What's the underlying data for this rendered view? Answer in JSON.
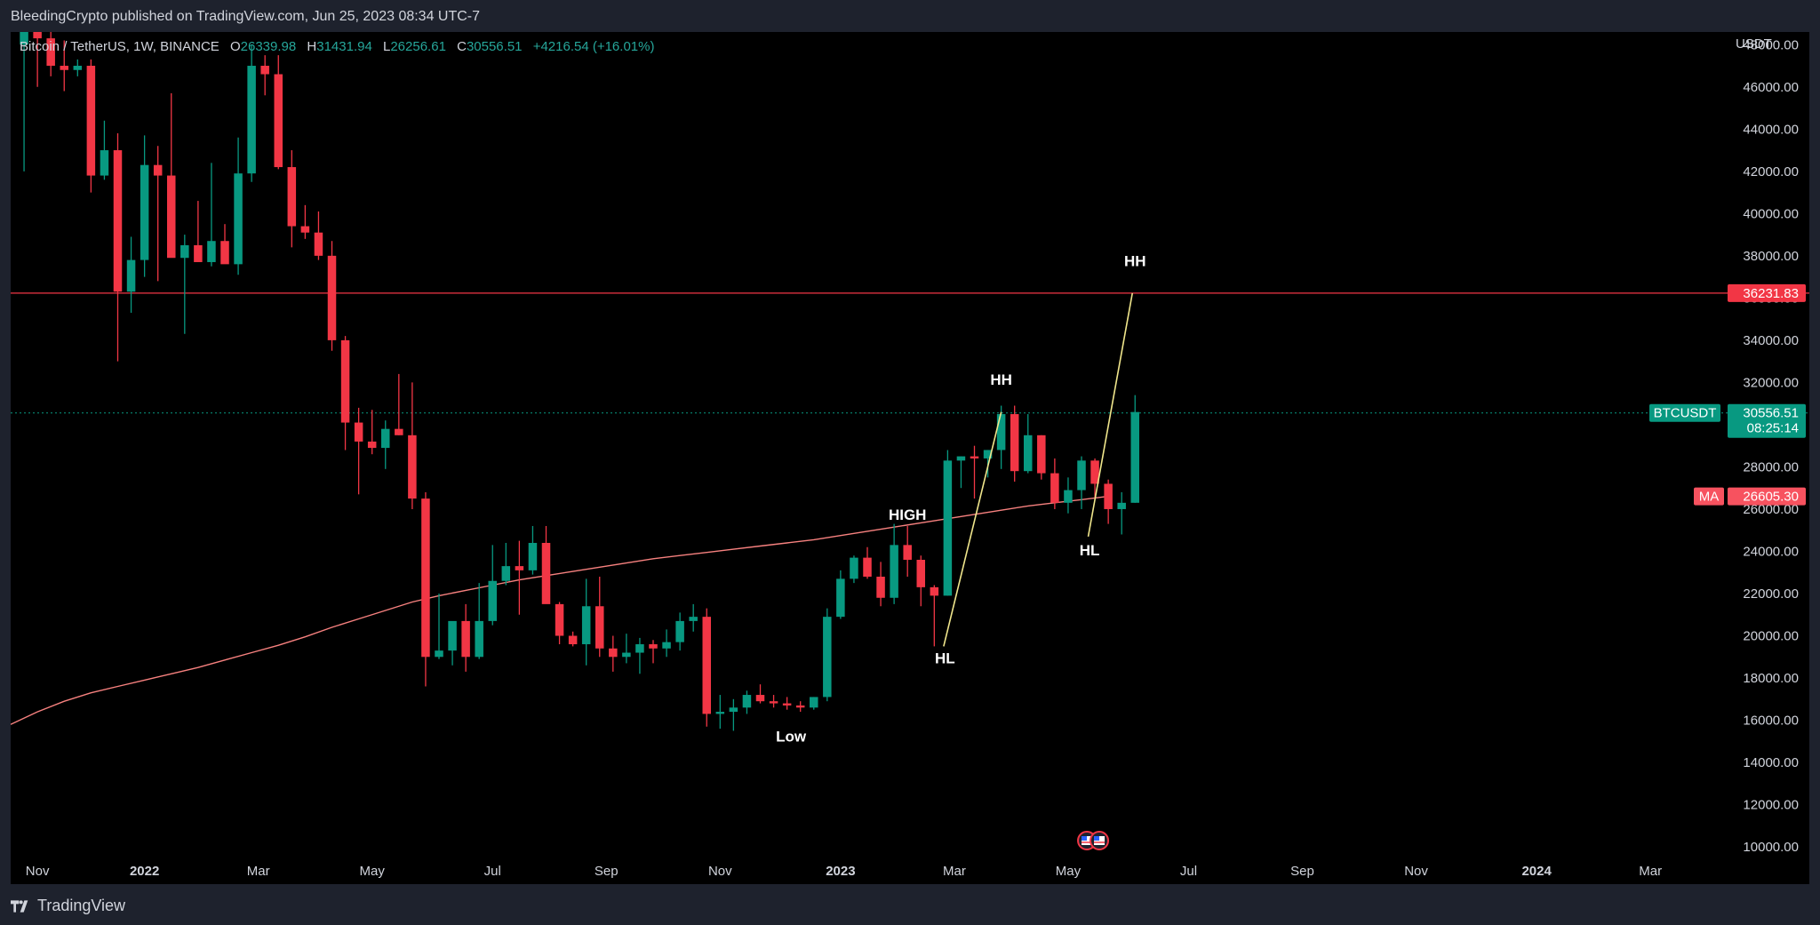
{
  "header": {
    "publisher_text": "BleedingCrypto published on TradingView.com, Jun 25, 2023 08:34 UTC-7"
  },
  "legend": {
    "symbol": "Bitcoin / TetherUS, 1W, BINANCE",
    "open_label": "O",
    "open": "26339.98",
    "high_label": "H",
    "high": "31431.94",
    "low_label": "L",
    "low": "26256.61",
    "close_label": "C",
    "close": "30556.51",
    "change": "+4216.54 (+16.01%)"
  },
  "price_scale": {
    "unit": "USDT",
    "ticks": [
      "10000.00",
      "12000.00",
      "14000.00",
      "16000.00",
      "18000.00",
      "20000.00",
      "22000.00",
      "24000.00",
      "26000.00",
      "28000.00",
      "30000.00",
      "32000.00",
      "34000.00",
      "36000.00",
      "38000.00",
      "40000.00",
      "42000.00",
      "44000.00",
      "46000.00",
      "48000.00"
    ]
  },
  "time_scale": {
    "labels": [
      {
        "text": "Nov",
        "w": -8,
        "bold": false
      },
      {
        "text": "2022",
        "w": 0,
        "bold": true
      },
      {
        "text": "Mar",
        "w": 8.5,
        "bold": false
      },
      {
        "text": "May",
        "w": 17,
        "bold": false
      },
      {
        "text": "Jul",
        "w": 26,
        "bold": false
      },
      {
        "text": "Sep",
        "w": 34.5,
        "bold": false
      },
      {
        "text": "Nov",
        "w": 43,
        "bold": false
      },
      {
        "text": "2023",
        "w": 52,
        "bold": true
      },
      {
        "text": "Mar",
        "w": 60.5,
        "bold": false
      },
      {
        "text": "May",
        "w": 69,
        "bold": false
      },
      {
        "text": "Jul",
        "w": 78,
        "bold": false
      },
      {
        "text": "Sep",
        "w": 86.5,
        "bold": false
      },
      {
        "text": "Nov",
        "w": 95,
        "bold": false
      },
      {
        "text": "2024",
        "w": 104,
        "bold": true
      },
      {
        "text": "Mar",
        "w": 112.5,
        "bold": false
      }
    ]
  },
  "price_tags": {
    "level": {
      "text": "36231.83",
      "value": 36231.83,
      "color": "#f23645"
    },
    "symbol_name": "BTCUSDT",
    "current": {
      "text": "30556.51",
      "value": 30556.51,
      "countdown": "08:25:14",
      "color": "#089981"
    },
    "ma_name": "MA",
    "ma": {
      "text": "26605.30",
      "value": 26605.3,
      "color": "#f7525f"
    }
  },
  "colors": {
    "up": "#089981",
    "down": "#f23645",
    "ma": "#f7817f",
    "trend": "#f0e68c",
    "axis_text": "#d1d4dc",
    "background": "#000000",
    "frame": "#1e222d"
  },
  "chart_data": {
    "type": "candlestick",
    "title": "Bitcoin / TetherUS, 1W, BINANCE",
    "xlabel": "",
    "ylabel": "USDT",
    "ylim": [
      9500,
      48600
    ],
    "xlim_weeks": [
      -10,
      118
    ],
    "x_reference": "2022",
    "candles_ohlc_weekly": [
      [
        48000,
        48900,
        42000,
        48700
      ],
      [
        48700,
        49000,
        46000,
        48300
      ],
      [
        48300,
        48800,
        46500,
        47000
      ],
      [
        47000,
        48200,
        45800,
        46800
      ],
      [
        46800,
        47300,
        46500,
        47000
      ],
      [
        47000,
        47300,
        41000,
        41800
      ],
      [
        41800,
        44400,
        41600,
        43000
      ],
      [
        43000,
        43800,
        33000,
        36300
      ],
      [
        36300,
        38900,
        35300,
        37800
      ],
      [
        37800,
        43700,
        37000,
        42300
      ],
      [
        42300,
        43200,
        36800,
        41800
      ],
      [
        41800,
        45700,
        40500,
        37900
      ],
      [
        37900,
        39000,
        34300,
        38500
      ],
      [
        38500,
        40600,
        37700,
        37700
      ],
      [
        37700,
        42400,
        37500,
        38700
      ],
      [
        38700,
        39500,
        37700,
        37600
      ],
      [
        37600,
        43600,
        37100,
        41900
      ],
      [
        41900,
        48000,
        41500,
        47000
      ],
      [
        47000,
        47500,
        45600,
        46600
      ],
      [
        46600,
        47500,
        42100,
        42200
      ],
      [
        42200,
        43000,
        38400,
        39400
      ],
      [
        39400,
        40400,
        38800,
        39100
      ],
      [
        39100,
        40100,
        37800,
        38000
      ],
      [
        38000,
        38700,
        33500,
        34000
      ],
      [
        34000,
        34200,
        28800,
        30100
      ],
      [
        30100,
        30800,
        26700,
        29200
      ],
      [
        29200,
        30700,
        28600,
        28900
      ],
      [
        28900,
        30200,
        27900,
        29800
      ],
      [
        29800,
        32400,
        29500,
        29500
      ],
      [
        29500,
        32000,
        26000,
        26500
      ],
      [
        26500,
        26800,
        17600,
        19000
      ],
      [
        19000,
        22000,
        18900,
        19300
      ],
      [
        19300,
        20500,
        18600,
        20700
      ],
      [
        20700,
        21500,
        18300,
        19000
      ],
      [
        19000,
        22500,
        18900,
        20700
      ],
      [
        20700,
        24300,
        20500,
        22600
      ],
      [
        22600,
        24400,
        22400,
        23300
      ],
      [
        23300,
        24500,
        21000,
        23100
      ],
      [
        23100,
        25200,
        22900,
        24400
      ],
      [
        24400,
        25200,
        21600,
        21500
      ],
      [
        21500,
        21600,
        19600,
        20000
      ],
      [
        20000,
        20200,
        19500,
        19600
      ],
      [
        19600,
        22700,
        18600,
        21400
      ],
      [
        21400,
        22800,
        19000,
        19400
      ],
      [
        19400,
        20000,
        18300,
        19000
      ],
      [
        19000,
        20100,
        18700,
        19200
      ],
      [
        19200,
        19900,
        18200,
        19600
      ],
      [
        19600,
        19800,
        18700,
        19400
      ],
      [
        19400,
        20300,
        19000,
        19700
      ],
      [
        19700,
        21100,
        19300,
        20700
      ],
      [
        20700,
        21500,
        20200,
        20900
      ],
      [
        20900,
        21300,
        15700,
        16300
      ],
      [
        16300,
        17200,
        15600,
        16400
      ],
      [
        16400,
        17000,
        15500,
        16600
      ],
      [
        16600,
        17400,
        16300,
        17200
      ],
      [
        17200,
        17700,
        16800,
        16900
      ],
      [
        16900,
        17200,
        16600,
        16800
      ],
      [
        16800,
        17100,
        16500,
        16700
      ],
      [
        16700,
        16900,
        16400,
        16600
      ],
      [
        16600,
        17100,
        16500,
        17100
      ],
      [
        17100,
        21300,
        16900,
        20900
      ],
      [
        20900,
        23100,
        20800,
        22700
      ],
      [
        22700,
        23800,
        22500,
        23700
      ],
      [
        23700,
        24200,
        22700,
        22800
      ],
      [
        22800,
        23500,
        21400,
        21800
      ],
      [
        21800,
        25300,
        21500,
        24300
      ],
      [
        24300,
        25200,
        22800,
        23600
      ],
      [
        23600,
        23800,
        21400,
        22300
      ],
      [
        22300,
        22400,
        19500,
        21900
      ],
      [
        21900,
        28800,
        21900,
        28300
      ],
      [
        28300,
        28500,
        27000,
        28500
      ],
      [
        28500,
        29000,
        26500,
        28400
      ],
      [
        28400,
        28800,
        27500,
        28800
      ],
      [
        28800,
        30900,
        27900,
        30500
      ],
      [
        30500,
        30900,
        27300,
        27800
      ],
      [
        27800,
        30500,
        27700,
        29500
      ],
      [
        29500,
        29500,
        27400,
        27700
      ],
      [
        27700,
        28400,
        26000,
        26300
      ],
      [
        26300,
        27500,
        25800,
        26900
      ],
      [
        26900,
        28500,
        26000,
        28300
      ],
      [
        28300,
        28400,
        26500,
        27200
      ],
      [
        27200,
        27400,
        25300,
        26000
      ],
      [
        26000,
        26800,
        24800,
        26300
      ],
      [
        26300,
        31400,
        26300,
        30600
      ]
    ],
    "ma_points": [
      [
        -10,
        15800
      ],
      [
        -8,
        16400
      ],
      [
        -6,
        16900
      ],
      [
        -4,
        17300
      ],
      [
        -2,
        17600
      ],
      [
        0,
        17900
      ],
      [
        2,
        18200
      ],
      [
        4,
        18500
      ],
      [
        6,
        18850
      ],
      [
        8,
        19200
      ],
      [
        10,
        19550
      ],
      [
        12,
        19950
      ],
      [
        14,
        20400
      ],
      [
        16,
        20800
      ],
      [
        18,
        21200
      ],
      [
        20,
        21600
      ],
      [
        22,
        21900
      ],
      [
        24,
        22150
      ],
      [
        26,
        22400
      ],
      [
        28,
        22650
      ],
      [
        30,
        22850
      ],
      [
        32,
        23050
      ],
      [
        34,
        23250
      ],
      [
        36,
        23450
      ],
      [
        38,
        23650
      ],
      [
        40,
        23800
      ],
      [
        42,
        23950
      ],
      [
        44,
        24100
      ],
      [
        46,
        24250
      ],
      [
        48,
        24400
      ],
      [
        50,
        24550
      ],
      [
        52,
        24750
      ],
      [
        54,
        24950
      ],
      [
        56,
        25150
      ],
      [
        58,
        25350
      ],
      [
        60,
        25550
      ],
      [
        62,
        25750
      ],
      [
        64,
        25950
      ],
      [
        66,
        26150
      ],
      [
        68,
        26300
      ],
      [
        70,
        26450
      ],
      [
        72,
        26605
      ]
    ],
    "horizontal_line": {
      "value": 36231.83,
      "color": "#f23645"
    },
    "trend_lines": [
      {
        "points": [
          [
            59.7,
            19500
          ],
          [
            64,
            30600
          ]
        ]
      },
      {
        "points": [
          [
            70.5,
            24700
          ],
          [
            73.8,
            36231.83
          ]
        ]
      }
    ],
    "annotations": [
      {
        "text": "HH",
        "w": 74,
        "p": 37500
      },
      {
        "text": "HH",
        "w": 64,
        "p": 31900
      },
      {
        "text": "HIGH",
        "w": 57,
        "p": 25500
      },
      {
        "text": "HL",
        "w": 70.6,
        "p": 23800
      },
      {
        "text": "HL",
        "w": 59.8,
        "p": 18700
      },
      {
        "text": "Low",
        "w": 48.3,
        "p": 15000
      }
    ]
  },
  "footer": {
    "brand": "TradingView"
  }
}
